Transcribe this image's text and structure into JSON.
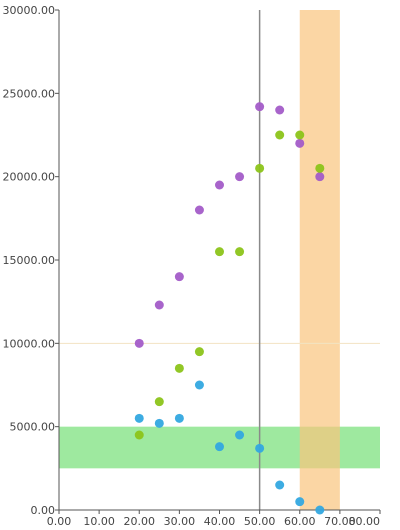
{
  "chart_data": {
    "type": "scatter",
    "xlim": [
      0,
      80
    ],
    "ylim": [
      0,
      30000
    ],
    "x_ticks": [
      "0.00",
      "10.00",
      "20.00",
      "30.00",
      "40.00",
      "50.00",
      "60.00",
      "70.00",
      "80.00"
    ],
    "y_ticks": [
      "0.00",
      "5000.00",
      "10000.00",
      "15000.00",
      "20000.00",
      "25000.00",
      "30000.00"
    ],
    "x_tick_values": [
      0,
      10,
      20,
      30,
      40,
      50,
      60,
      70,
      80
    ],
    "y_tick_values": [
      0,
      5000,
      10000,
      15000,
      20000,
      25000,
      30000
    ],
    "grid": false,
    "series": [
      {
        "color": "#a35cc8",
        "points": [
          [
            20,
            10000
          ],
          [
            25,
            12300
          ],
          [
            30,
            14000
          ],
          [
            35,
            18000
          ],
          [
            40,
            19500
          ],
          [
            45,
            20000
          ],
          [
            50,
            24200
          ],
          [
            55,
            24000
          ],
          [
            60,
            22000
          ],
          [
            65,
            20000
          ]
        ]
      },
      {
        "color": "#8cc41a",
        "points": [
          [
            20,
            4500
          ],
          [
            25,
            6500
          ],
          [
            30,
            8500
          ],
          [
            35,
            9500
          ],
          [
            40,
            15500
          ],
          [
            45,
            15500
          ],
          [
            50,
            20500
          ],
          [
            55,
            22500
          ],
          [
            60,
            22500
          ],
          [
            65,
            20500
          ]
        ]
      },
      {
        "color": "#33a8e0",
        "points": [
          [
            20,
            5500
          ],
          [
            25,
            5200
          ],
          [
            30,
            5500
          ],
          [
            35,
            7500
          ],
          [
            40,
            3800
          ],
          [
            45,
            4500
          ],
          [
            50,
            3700
          ],
          [
            55,
            1500
          ],
          [
            60,
            500
          ],
          [
            65,
            0
          ]
        ]
      }
    ],
    "annotations": {
      "vertical_line_x": 50,
      "horizontal_line_y": 10000,
      "x_band": [
        60,
        70
      ],
      "y_band": [
        2500,
        5000
      ],
      "x_band_color": "#f9c57e",
      "y_band_color": "#7de27f",
      "vertical_line_color": "#8a8a8a",
      "horizontal_line_color": "#f2e3c2"
    }
  }
}
